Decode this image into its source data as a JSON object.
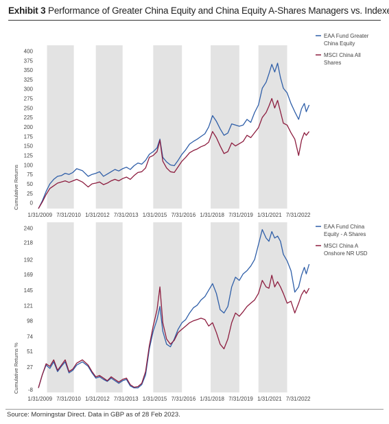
{
  "title": {
    "label": "Exhibit 3",
    "text": "Performance of Greater China Equity and China Equity A-Shares Managers vs. Indexes"
  },
  "source": "Source: Morningstar Direct. Data in GBP  as of 28 Feb 2023.",
  "colors": {
    "fund": "#2e5ea8",
    "index": "#8c1c3e",
    "shade": "#e3e3e3"
  },
  "chart_data": [
    {
      "type": "line",
      "ylabel": "Cumulative Returns",
      "y_ticks": [
        0,
        25,
        50,
        75,
        100,
        125,
        150,
        175,
        200,
        225,
        250,
        275,
        300,
        325,
        350,
        375,
        400
      ],
      "ylim": [
        -15,
        408
      ],
      "x_ticks": [
        "1/31/2009",
        "7/31/2010",
        "1/31/2012",
        "7/31/2013",
        "1/31/2015",
        "7/31/2016",
        "1/31/2018",
        "7/31/2019",
        "1/31/2021",
        "7/31/2022"
      ],
      "shaded_bands": [
        [
          2009.45,
          2010.85
        ],
        [
          2012.0,
          2013.4
        ],
        [
          2015.0,
          2016.5
        ],
        [
          2018.0,
          2019.5
        ],
        [
          2020.5,
          2022.0
        ]
      ],
      "legend": [
        {
          "lines": [
            "EAA Fund Greater",
            "China Equity"
          ],
          "color": "#2e5ea8"
        },
        {
          "lines": [
            "MSCI China All",
            "Shares"
          ],
          "color": "#8c1c3e"
        }
      ],
      "series": [
        {
          "color": "#2e5ea8",
          "x": [
            2009.0,
            2009.2,
            2009.4,
            2009.6,
            2009.8,
            2010.0,
            2010.2,
            2010.4,
            2010.6,
            2010.8,
            2011.0,
            2011.3,
            2011.6,
            2011.8,
            2012.0,
            2012.2,
            2012.4,
            2012.6,
            2012.8,
            2013.0,
            2013.2,
            2013.4,
            2013.6,
            2013.8,
            2014.0,
            2014.2,
            2014.4,
            2014.6,
            2014.8,
            2015.0,
            2015.2,
            2015.35,
            2015.5,
            2015.7,
            2015.9,
            2016.1,
            2016.3,
            2016.5,
            2016.7,
            2016.9,
            2017.1,
            2017.3,
            2017.5,
            2017.7,
            2017.9,
            2018.1,
            2018.3,
            2018.5,
            2018.7,
            2018.9,
            2019.1,
            2019.3,
            2019.5,
            2019.7,
            2019.9,
            2020.1,
            2020.3,
            2020.5,
            2020.7,
            2020.9,
            2021.05,
            2021.2,
            2021.35,
            2021.5,
            2021.65,
            2021.8,
            2022.0,
            2022.2,
            2022.4,
            2022.6,
            2022.75,
            2022.9,
            2023.0,
            2023.15
          ],
          "values": [
            -15,
            5,
            30,
            50,
            62,
            70,
            72,
            78,
            75,
            80,
            90,
            85,
            70,
            75,
            78,
            82,
            70,
            76,
            82,
            88,
            84,
            90,
            94,
            88,
            98,
            105,
            102,
            112,
            128,
            135,
            145,
            168,
            120,
            108,
            100,
            98,
            112,
            128,
            140,
            155,
            162,
            168,
            175,
            182,
            200,
            230,
            215,
            195,
            178,
            184,
            208,
            205,
            202,
            205,
            220,
            212,
            238,
            258,
            302,
            318,
            340,
            365,
            345,
            368,
            330,
            302,
            290,
            262,
            240,
            220,
            248,
            262,
            240,
            258
          ]
        },
        {
          "color": "#8c1c3e",
          "x": [
            2009.0,
            2009.2,
            2009.4,
            2009.6,
            2009.8,
            2010.0,
            2010.2,
            2010.4,
            2010.6,
            2010.8,
            2011.0,
            2011.3,
            2011.6,
            2011.8,
            2012.0,
            2012.2,
            2012.4,
            2012.6,
            2012.8,
            2013.0,
            2013.2,
            2013.4,
            2013.6,
            2013.8,
            2014.0,
            2014.2,
            2014.4,
            2014.6,
            2014.8,
            2015.0,
            2015.2,
            2015.35,
            2015.5,
            2015.7,
            2015.9,
            2016.1,
            2016.3,
            2016.5,
            2016.7,
            2016.9,
            2017.1,
            2017.3,
            2017.5,
            2017.7,
            2017.9,
            2018.1,
            2018.3,
            2018.5,
            2018.7,
            2018.9,
            2019.1,
            2019.3,
            2019.5,
            2019.7,
            2019.9,
            2020.1,
            2020.3,
            2020.5,
            2020.7,
            2020.9,
            2021.05,
            2021.2,
            2021.35,
            2021.5,
            2021.65,
            2021.8,
            2022.0,
            2022.2,
            2022.4,
            2022.6,
            2022.75,
            2022.9,
            2023.0,
            2023.15
          ],
          "values": [
            -15,
            2,
            22,
            38,
            45,
            52,
            55,
            58,
            54,
            58,
            62,
            55,
            42,
            50,
            52,
            55,
            48,
            52,
            58,
            62,
            58,
            64,
            68,
            62,
            72,
            80,
            82,
            92,
            120,
            125,
            135,
            165,
            110,
            92,
            82,
            80,
            95,
            110,
            120,
            132,
            138,
            142,
            148,
            152,
            160,
            188,
            172,
            150,
            130,
            135,
            158,
            150,
            156,
            162,
            178,
            172,
            185,
            198,
            225,
            238,
            255,
            275,
            250,
            270,
            240,
            210,
            205,
            185,
            168,
            125,
            165,
            185,
            178,
            188
          ]
        }
      ]
    },
    {
      "type": "line",
      "ylabel": "Cumulative Returns %",
      "y_ticks": [
        -8,
        27,
        51,
        74,
        98,
        121,
        145,
        169,
        192,
        218,
        240
      ],
      "ylim": [
        -12,
        245
      ],
      "x_ticks": [
        "1/31/2009",
        "7/31/2010",
        "1/31/2012",
        "7/31/2013",
        "1/31/2015",
        "7/31/2016",
        "1/31/2018",
        "7/31/2019",
        "1/31/2021",
        "7/31/2022"
      ],
      "shaded_bands": [
        [
          2009.45,
          2010.85
        ],
        [
          2012.0,
          2013.4
        ],
        [
          2015.0,
          2016.5
        ],
        [
          2018.0,
          2019.5
        ],
        [
          2020.5,
          2022.0
        ]
      ],
      "legend": [
        {
          "lines": [
            "EAA Fund China",
            "Equity - A Shares"
          ],
          "color": "#2e5ea8"
        },
        {
          "lines": [
            "MSCI China A",
            "Onshore NR USD"
          ],
          "color": "#8c1c3e"
        }
      ],
      "series": [
        {
          "color": "#2e5ea8",
          "x": [
            2009.0,
            2009.2,
            2009.4,
            2009.6,
            2009.8,
            2010.0,
            2010.2,
            2010.4,
            2010.6,
            2010.8,
            2011.0,
            2011.3,
            2011.6,
            2011.8,
            2012.0,
            2012.2,
            2012.4,
            2012.6,
            2012.8,
            2013.0,
            2013.2,
            2013.4,
            2013.6,
            2013.8,
            2014.0,
            2014.2,
            2014.4,
            2014.6,
            2014.8,
            2015.0,
            2015.2,
            2015.35,
            2015.5,
            2015.7,
            2015.9,
            2016.1,
            2016.3,
            2016.5,
            2016.7,
            2016.9,
            2017.1,
            2017.3,
            2017.5,
            2017.7,
            2017.9,
            2018.1,
            2018.3,
            2018.5,
            2018.7,
            2018.9,
            2019.1,
            2019.3,
            2019.5,
            2019.7,
            2019.9,
            2020.1,
            2020.3,
            2020.5,
            2020.7,
            2020.9,
            2021.05,
            2021.2,
            2021.35,
            2021.5,
            2021.65,
            2021.8,
            2022.0,
            2022.2,
            2022.4,
            2022.6,
            2022.75,
            2022.9,
            2023.0,
            2023.15
          ],
          "values": [
            -5,
            15,
            30,
            25,
            35,
            20,
            28,
            35,
            18,
            22,
            30,
            35,
            28,
            18,
            10,
            12,
            8,
            5,
            10,
            6,
            2,
            6,
            8,
            -2,
            -5,
            -5,
            0,
            15,
            55,
            82,
            100,
            120,
            82,
            62,
            58,
            70,
            85,
            95,
            100,
            110,
            118,
            122,
            130,
            135,
            145,
            155,
            140,
            115,
            110,
            120,
            150,
            165,
            160,
            170,
            175,
            182,
            192,
            215,
            238,
            225,
            220,
            235,
            225,
            228,
            220,
            200,
            190,
            175,
            142,
            150,
            168,
            180,
            170,
            185
          ]
        },
        {
          "color": "#8c1c3e",
          "x": [
            2009.0,
            2009.2,
            2009.4,
            2009.6,
            2009.8,
            2010.0,
            2010.2,
            2010.4,
            2010.6,
            2010.8,
            2011.0,
            2011.3,
            2011.6,
            2011.8,
            2012.0,
            2012.2,
            2012.4,
            2012.6,
            2012.8,
            2013.0,
            2013.2,
            2013.4,
            2013.6,
            2013.8,
            2014.0,
            2014.2,
            2014.4,
            2014.6,
            2014.8,
            2015.0,
            2015.2,
            2015.35,
            2015.5,
            2015.7,
            2015.9,
            2016.1,
            2016.3,
            2016.5,
            2016.7,
            2016.9,
            2017.1,
            2017.3,
            2017.5,
            2017.7,
            2017.9,
            2018.1,
            2018.3,
            2018.5,
            2018.7,
            2018.9,
            2019.1,
            2019.3,
            2019.5,
            2019.7,
            2019.9,
            2020.1,
            2020.3,
            2020.5,
            2020.7,
            2020.9,
            2021.05,
            2021.2,
            2021.35,
            2021.5,
            2021.65,
            2021.8,
            2022.0,
            2022.2,
            2022.4,
            2022.6,
            2022.75,
            2022.9,
            2023.0,
            2023.15
          ],
          "values": [
            -5,
            15,
            32,
            28,
            38,
            22,
            30,
            38,
            20,
            24,
            33,
            38,
            30,
            20,
            12,
            14,
            10,
            6,
            12,
            8,
            4,
            8,
            10,
            0,
            -4,
            -3,
            2,
            20,
            60,
            90,
            115,
            150,
            95,
            70,
            62,
            68,
            80,
            85,
            90,
            95,
            98,
            100,
            102,
            100,
            90,
            95,
            80,
            62,
            55,
            70,
            95,
            110,
            105,
            112,
            120,
            125,
            130,
            140,
            160,
            150,
            148,
            168,
            150,
            158,
            150,
            140,
            125,
            128,
            110,
            125,
            138,
            145,
            140,
            148
          ]
        }
      ]
    }
  ]
}
